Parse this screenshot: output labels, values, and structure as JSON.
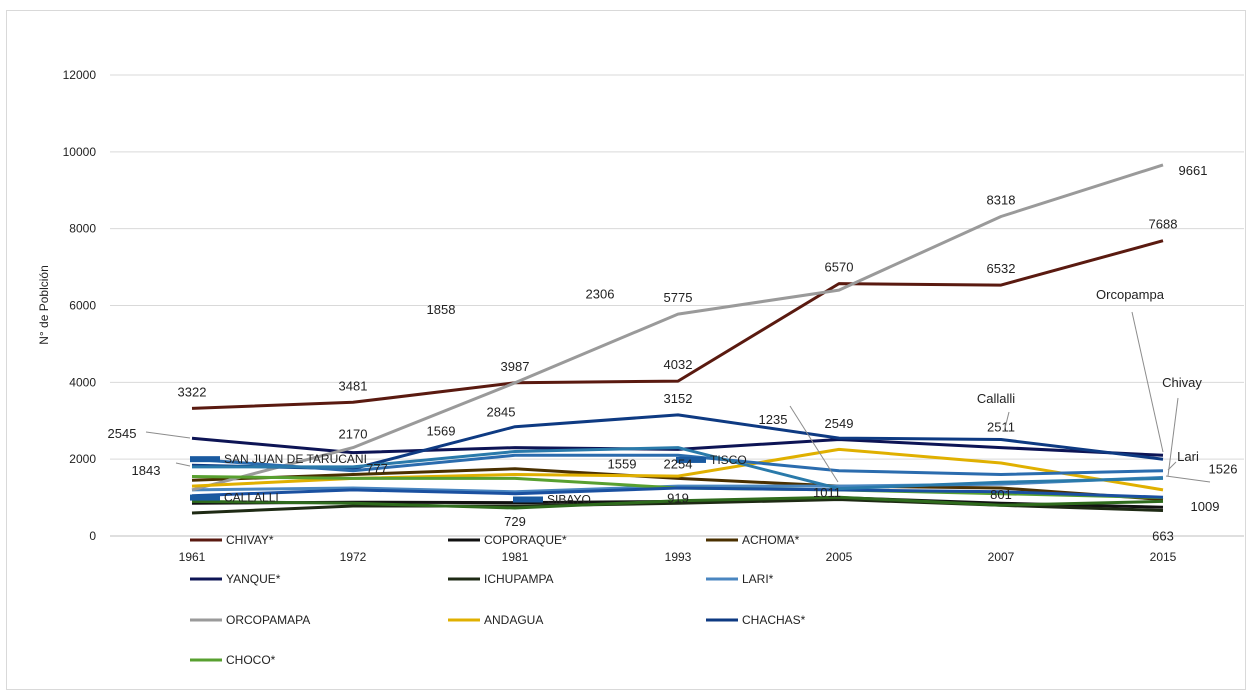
{
  "chart_data": {
    "type": "line",
    "ylabel": "N° de Poblción",
    "xlabel": "",
    "title": "",
    "categories": [
      "1961",
      "1972",
      "1981",
      "1993",
      "2005",
      "2007",
      "2015"
    ],
    "ylim": [
      0,
      12000
    ],
    "yticks": [
      "0",
      "2000",
      "4000",
      "6000",
      "8000",
      "10000",
      "12000"
    ],
    "grid": true,
    "legend_position": "bottom-left",
    "series": [
      {
        "name": "CHIVAY*",
        "color": "#5a1a10",
        "values": [
          3322,
          3481,
          3987,
          4032,
          6570,
          6532,
          7688
        ]
      },
      {
        "name": "COPORAQUE*",
        "color": "#111111",
        "values": [
          850,
          880,
          870,
          900,
          1000,
          850,
          750
        ]
      },
      {
        "name": "ACHOMA*",
        "color": "#4a3000",
        "values": [
          1450,
          1600,
          1750,
          1500,
          1300,
          1250,
          950
        ]
      },
      {
        "name": "YANQUE*",
        "color": "#0d1455",
        "values": [
          2545,
          2170,
          2300,
          2254,
          2511,
          2300,
          2100
        ]
      },
      {
        "name": "ICHUPAMPA",
        "color": "#1e2a14",
        "values": [
          600,
          780,
          780,
          850,
          950,
          800,
          663
        ]
      },
      {
        "name": "LARI*",
        "color": "#4a86c0",
        "values": [
          1200,
          1250,
          1150,
          1300,
          1300,
          1350,
          1526
        ]
      },
      {
        "name": "ORCOPAMAPA",
        "color": "#9a9a9a",
        "values": [
          1200,
          2300,
          3987,
          5775,
          6400,
          8318,
          9661
        ]
      },
      {
        "name": "ANDAGUA",
        "color": "#e0b000",
        "values": [
          1300,
          1500,
          1600,
          1559,
          2254,
          1900,
          1200
        ]
      },
      {
        "name": "CHACHAS*",
        "color": "#0e3a82",
        "values": [
          1843,
          1750,
          2845,
          3152,
          2549,
          2511,
          2000
        ]
      },
      {
        "name": "CHOCO*",
        "color": "#58a030",
        "values": [
          1550,
          1500,
          1500,
          1250,
          1200,
          1100,
          1000
        ]
      },
      {
        "name": "SAN JUAN DE TARUCANI",
        "color": "#2b6cae",
        "values": [
          2000,
          1700,
          2100,
          2100,
          1700,
          1600,
          1700
        ]
      },
      {
        "name": "CALLALLI",
        "color": "#1a50a0",
        "values": [
          1050,
          1200,
          1100,
          1250,
          1200,
          1150,
          1009
        ]
      },
      {
        "name": "SIBAYO",
        "color": "#2f6b1d",
        "values": [
          900,
          850,
          729,
          919,
          1011,
          801,
          900
        ]
      },
      {
        "name": "TISCO",
        "color": "#2a7aaa",
        "values": [
          1800,
          1800,
          2200,
          2300,
          1235,
          1400,
          1500
        ]
      }
    ],
    "legend": [
      "CHIVAY*",
      "COPORAQUE*",
      "ACHOMA*",
      "YANQUE*",
      "ICHUPAMPA",
      "LARI*",
      "ORCOPAMAPA",
      "ANDAGUA",
      "CHACHAS*",
      "CHOCO*"
    ],
    "inline_labels": [
      {
        "text": "SAN JUAN DE TARUCANI",
        "x": "1961",
        "y": 2000
      },
      {
        "text": "CALLALLI",
        "x": "1961",
        "y": 1000
      },
      {
        "text": "SIBAYO",
        "x": "1981",
        "y": 950
      },
      {
        "text": "TISCO",
        "x": "1993",
        "y": 1980
      }
    ],
    "data_labels": [
      {
        "text": "3322",
        "x": "1961",
        "y": 3322
      },
      {
        "text": "3481",
        "x": "1972",
        "y": 3481
      },
      {
        "text": "3987",
        "x": "1981",
        "y": 3987
      },
      {
        "text": "4032",
        "x": "1993",
        "y": 4032
      },
      {
        "text": "6570",
        "x": "2005",
        "y": 6570
      },
      {
        "text": "6532",
        "x": "2007",
        "y": 6532
      },
      {
        "text": "7688",
        "x": "2015",
        "y": 7688
      },
      {
        "text": "5775",
        "x": "1993",
        "y": 5775
      },
      {
        "text": "8318",
        "x": "2007",
        "y": 8318
      },
      {
        "text": "9661",
        "x": "2015",
        "y": 9661
      },
      {
        "text": "1858",
        "x": "1981",
        "y": 5000
      },
      {
        "text": "2306",
        "x": "1993",
        "y": 5500
      },
      {
        "text": "2545",
        "x": "1961",
        "y": 2545
      },
      {
        "text": "2170",
        "x": "1972",
        "y": 2170
      },
      {
        "text": "1843",
        "x": "1961",
        "y": 1843
      },
      {
        "text": "1569",
        "x": "1981",
        "y": 2845
      },
      {
        "text": "2845",
        "x": "1981",
        "y": 2845
      },
      {
        "text": "3152",
        "x": "1993",
        "y": 3152
      },
      {
        "text": "1559",
        "x": "1993",
        "y": 2254
      },
      {
        "text": "2254",
        "x": "1993",
        "y": 2254
      },
      {
        "text": "1235",
        "x": "2005",
        "y": 2549
      },
      {
        "text": "2549",
        "x": "2005",
        "y": 2549
      },
      {
        "text": "2511",
        "x": "2007",
        "y": 2511
      },
      {
        "text": "777",
        "x": "1972",
        "y": 1800
      },
      {
        "text": "729",
        "x": "1981",
        "y": 729
      },
      {
        "text": "919",
        "x": "1993",
        "y": 919
      },
      {
        "text": "1011",
        "x": "2005",
        "y": 1011
      },
      {
        "text": "801",
        "x": "2007",
        "y": 801
      },
      {
        "text": "1526",
        "x": "2015",
        "y": 1526
      },
      {
        "text": "1009",
        "x": "2015",
        "y": 1009
      },
      {
        "text": "663",
        "x": "2015",
        "y": 663
      }
    ],
    "callouts": [
      {
        "text": "Orcopampa"
      },
      {
        "text": "Chivay"
      },
      {
        "text": "Callalli"
      },
      {
        "text": "Lari"
      }
    ]
  }
}
